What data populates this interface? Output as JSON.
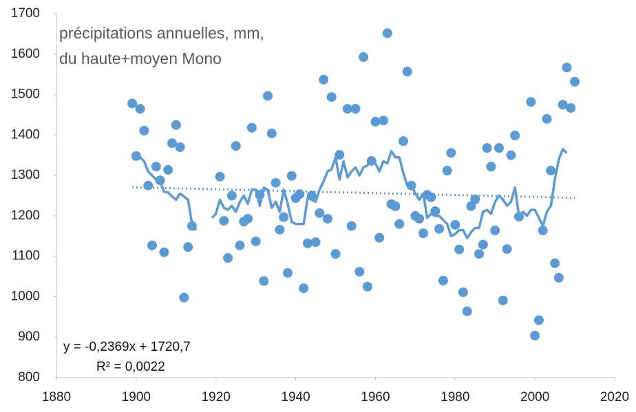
{
  "chart_data": {
    "type": "scatter",
    "title_lines": [
      "précipitations annuelles, mm,",
      "du haute+moyen Mono"
    ],
    "annotations": [
      "y = -0,2369x + 1720,7",
      "R² = 0,0022"
    ],
    "xlim": [
      1880,
      2020
    ],
    "xticks": [
      1880,
      1900,
      1920,
      1940,
      1960,
      1980,
      2000,
      2020
    ],
    "ylim": [
      800,
      1700
    ],
    "yticks": [
      800,
      900,
      1000,
      1100,
      1200,
      1300,
      1400,
      1500,
      1600,
      1700
    ],
    "grid": false,
    "series": [
      {
        "type": "scatter",
        "color": "#5b9bd5",
        "x": [
          1899,
          1900,
          1901,
          1902,
          1903,
          1904,
          1905,
          1906,
          1907,
          1908,
          1909,
          1910,
          1911,
          1912,
          1913,
          1914,
          1921,
          1922,
          1923,
          1924,
          1925,
          1926,
          1927,
          1928,
          1929,
          1930,
          1931,
          1932,
          1933,
          1934,
          1935,
          1936,
          1937,
          1938,
          1939,
          1940,
          1941,
          1942,
          1943,
          1944,
          1945,
          1946,
          1947,
          1948,
          1949,
          1950,
          1951,
          1953,
          1954,
          1955,
          1956,
          1957,
          1958,
          1959,
          1960,
          1961,
          1962,
          1963,
          1964,
          1965,
          1966,
          1967,
          1968,
          1969,
          1970,
          1971,
          1972,
          1973,
          1974,
          1975,
          1976,
          1977,
          1978,
          1979,
          1980,
          1981,
          1982,
          1983,
          1984,
          1985,
          1986,
          1987,
          1988,
          1989,
          1990,
          1991,
          1992,
          1993,
          1994,
          1995,
          1996,
          1999,
          2000,
          2001,
          2002,
          2003,
          2004,
          2005,
          2006,
          2007,
          2008,
          2009,
          2010
        ],
        "values": [
          1478,
          1348,
          1465,
          1411,
          1275,
          1127,
          1322,
          1288,
          1110,
          1314,
          1380,
          1425,
          1370,
          998,
          1123,
          1175,
          1297,
          1188,
          1096,
          1250,
          1373,
          1127,
          1186,
          1193,
          1418,
          1137,
          1252,
          1039,
          1497,
          1404,
          1282,
          1166,
          1197,
          1059,
          1299,
          1244,
          1254,
          1021,
          1132,
          1250,
          1135,
          1207,
          1537,
          1193,
          1494,
          1106,
          1351,
          1465,
          1175,
          1465,
          1062,
          1593,
          1025,
          1336,
          1433,
          1146,
          1436,
          1652,
          1229,
          1224,
          1180,
          1385,
          1557,
          1275,
          1200,
          1193,
          1157,
          1252,
          1246,
          1212,
          1168,
          1040,
          1312,
          1356,
          1178,
          1117,
          1011,
          964,
          1224,
          1241,
          1106,
          1129,
          1368,
          1322,
          1164,
          1368,
          991,
          1118,
          1350,
          1399,
          1198,
          1482,
          904,
          942,
          1164,
          1440,
          1312,
          1083,
          1047,
          1475,
          1567,
          1467,
          1532
        ]
      },
      {
        "type": "line",
        "color": "#5b9bd5",
        "x": [
          1900,
          1901,
          1902,
          1903,
          1904,
          1905,
          1906,
          1907,
          1908,
          1909,
          1910,
          1911,
          1912,
          1913,
          1914,
          1915,
          1916,
          1917,
          1918,
          1919,
          1920,
          1921,
          1922,
          1923,
          1924,
          1925,
          1926,
          1927,
          1928,
          1929,
          1930,
          1931,
          1932,
          1933,
          1934,
          1935,
          1936,
          1937,
          1938,
          1939,
          1940,
          1941,
          1942,
          1943,
          1944,
          1945,
          1946,
          1947,
          1948,
          1949,
          1950,
          1951,
          1952,
          1953,
          1954,
          1955,
          1956,
          1957,
          1958,
          1959,
          1960,
          1961,
          1962,
          1963,
          1964,
          1965,
          1966,
          1967,
          1968,
          1969,
          1970,
          1971,
          1972,
          1973,
          1974,
          1975,
          1976,
          1977,
          1978,
          1979,
          1980,
          1981,
          1982,
          1983,
          1984,
          1985,
          1986,
          1987,
          1988,
          1989,
          1990,
          1991,
          1992,
          1993,
          1994,
          1995,
          1996,
          1997,
          1998,
          1999,
          2000,
          2001,
          2002,
          2003,
          2004,
          2005,
          2006,
          2007,
          2008
        ],
        "values": [
          1350,
          1345,
          1335,
          1310,
          1300,
          1290,
          1285,
          1260,
          1258,
          1248,
          1240,
          1255,
          1248,
          1240,
          1180,
          1165,
          null,
          null,
          null,
          1195,
          1205,
          1240,
          1220,
          1215,
          1225,
          1210,
          1235,
          1250,
          1230,
          1265,
          1265,
          1225,
          1270,
          1265,
          1220,
          1235,
          1210,
          1265,
          1230,
          1185,
          1180,
          1180,
          1180,
          1245,
          1240,
          1235,
          1265,
          1285,
          1310,
          1315,
          1345,
          1290,
          1335,
          1295,
          1310,
          1320,
          1300,
          1320,
          1325,
          1345,
          1330,
          1310,
          1335,
          1330,
          1360,
          1345,
          1345,
          1305,
          1275,
          1280,
          1255,
          1240,
          1255,
          1195,
          1205,
          1200,
          1200,
          1190,
          1180,
          1150,
          1155,
          1165,
          1165,
          1145,
          1160,
          1170,
          1170,
          1210,
          1215,
          1205,
          1235,
          1250,
          1240,
          1225,
          1235,
          1270,
          1200,
          1210,
          1200,
          1215,
          1215,
          1195,
          1175,
          1210,
          1225,
          1290,
          1340,
          1365,
          1355
        ]
      },
      {
        "type": "trend",
        "color": "#5b9bd5",
        "x": [
          1899,
          2010
        ],
        "values": [
          1270.8,
          1244.5
        ]
      }
    ]
  }
}
